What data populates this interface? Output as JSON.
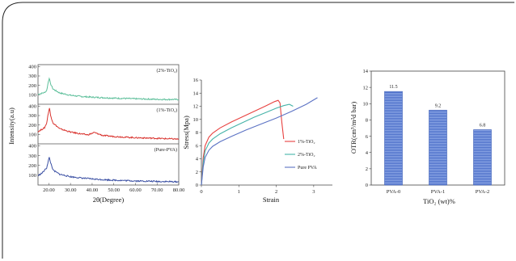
{
  "chart_data": [
    {
      "type": "line",
      "panel": "xrd",
      "xlabel": "2θ(Degree)",
      "ylabel": "Intensity(a.u)",
      "xlim": [
        15,
        80
      ],
      "x_ticks": [
        "20.00",
        "30.00",
        "40.00",
        "50.00",
        "60.00",
        "70.00",
        "80.00"
      ],
      "y_ticks": [
        "100",
        "200",
        "300",
        "400"
      ],
      "series": [
        {
          "name": "(2%-TiO₂)",
          "color": "#5dbf9a",
          "x": [
            15,
            18,
            19,
            19.8,
            20.2,
            20.7,
            22,
            25,
            30,
            35,
            40,
            50,
            60,
            70,
            80
          ],
          "y": [
            105,
            125,
            145,
            240,
            280,
            220,
            160,
            120,
            95,
            82,
            75,
            65,
            58,
            52,
            50
          ]
        },
        {
          "name": "(1%-TiO₂)",
          "color": "#d9342f",
          "x": [
            15,
            18,
            19,
            19.8,
            20.3,
            20.8,
            22,
            25,
            30,
            35,
            38,
            41,
            45,
            50,
            60,
            70,
            80
          ],
          "y": [
            130,
            170,
            220,
            330,
            380,
            300,
            220,
            160,
            125,
            105,
            95,
            120,
            88,
            78,
            65,
            58,
            50
          ]
        },
        {
          "name": "(Pure-PVA)",
          "color": "#3a4fa3",
          "x": [
            15,
            17,
            19,
            19.8,
            20.2,
            20.8,
            22,
            25,
            30,
            35,
            40,
            45,
            50,
            60,
            70,
            80
          ],
          "y": [
            95,
            125,
            175,
            250,
            280,
            230,
            150,
            110,
            85,
            72,
            62,
            55,
            50,
            42,
            37,
            33
          ]
        }
      ]
    },
    {
      "type": "line",
      "panel": "stress-strain",
      "xlabel": "Strain",
      "ylabel": "Stress(Mpa)",
      "xlim": [
        0,
        3.5
      ],
      "ylim": [
        0,
        16
      ],
      "x_ticks": [
        "0",
        "1",
        "2",
        "3"
      ],
      "y_ticks": [
        "0",
        "2",
        "4",
        "6",
        "8",
        "10",
        "12",
        "14",
        "16"
      ],
      "legend_position": "right",
      "series": [
        {
          "name": "1%-TiO₂",
          "color": "#e8413f",
          "x": [
            0,
            0.05,
            0.1,
            0.2,
            0.3,
            0.5,
            0.8,
            1.1,
            1.4,
            1.7,
            1.95,
            2.05,
            2.1,
            2.15,
            2.2
          ],
          "y": [
            0,
            4.2,
            6.0,
            7.3,
            7.9,
            8.7,
            9.6,
            10.4,
            11.2,
            12.0,
            12.7,
            12.9,
            12.5,
            9.5,
            7.0
          ]
        },
        {
          "name": "2%-TiO₂",
          "color": "#45b3a8",
          "x": [
            0,
            0.05,
            0.1,
            0.2,
            0.3,
            0.5,
            0.8,
            1.1,
            1.4,
            1.7,
            2.0,
            2.2,
            2.35,
            2.45
          ],
          "y": [
            0,
            3.5,
            5.2,
            6.4,
            7.0,
            7.8,
            8.7,
            9.5,
            10.3,
            11.0,
            11.7,
            12.1,
            12.3,
            12.0
          ]
        },
        {
          "name": "Pure PVA",
          "color": "#5b72c4",
          "x": [
            0,
            0.05,
            0.1,
            0.2,
            0.3,
            0.5,
            0.8,
            1.2,
            1.6,
            2.0,
            2.4,
            2.8,
            3.1
          ],
          "y": [
            0,
            2.8,
            4.2,
            5.3,
            5.9,
            6.6,
            7.4,
            8.4,
            9.3,
            10.2,
            11.2,
            12.3,
            13.3
          ]
        }
      ]
    },
    {
      "type": "bar",
      "panel": "otr",
      "xlabel": "TiO₂ (wt)%",
      "ylabel": "OTR(cm³/m²d bar)",
      "ylim": [
        0,
        14
      ],
      "y_ticks": [
        "0",
        "2",
        "4",
        "6",
        "8",
        "10",
        "12",
        "14"
      ],
      "categories": [
        "PVA-0",
        "PVA-1",
        "PVA-2"
      ],
      "values": [
        11.5,
        9.2,
        6.8
      ],
      "value_labels": [
        "11.5",
        "9.2",
        "6.8"
      ],
      "bar_color": "#5b7fd1"
    }
  ]
}
